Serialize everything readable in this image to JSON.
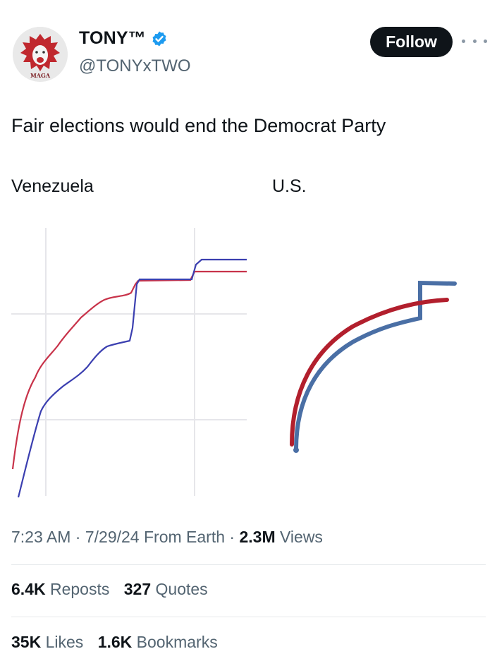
{
  "author": {
    "display_name": "TONY™",
    "handle": "@TONYxTWO",
    "avatar_text": "MAGA"
  },
  "follow_label": "Follow",
  "tweet_text": "Fair elections would end the Democrat Party",
  "media": {
    "left_label": "Venezuela",
    "right_label": "U.S."
  },
  "meta": {
    "time": "7:23 AM",
    "date": "7/29/24",
    "source": "From Earth",
    "views_count": "2.3M",
    "views_label": "Views"
  },
  "stats_row1": [
    {
      "count": "6.4K",
      "label": "Reposts"
    },
    {
      "count": "327",
      "label": "Quotes"
    }
  ],
  "stats_row2": [
    {
      "count": "35K",
      "label": "Likes"
    },
    {
      "count": "1.6K",
      "label": "Bookmarks"
    }
  ],
  "colors": {
    "red": "#c8334a",
    "blue": "#3b3fb0",
    "us_red": "#b21f2d",
    "us_blue": "#4a6fa5",
    "verified": "#1d9bf0"
  }
}
